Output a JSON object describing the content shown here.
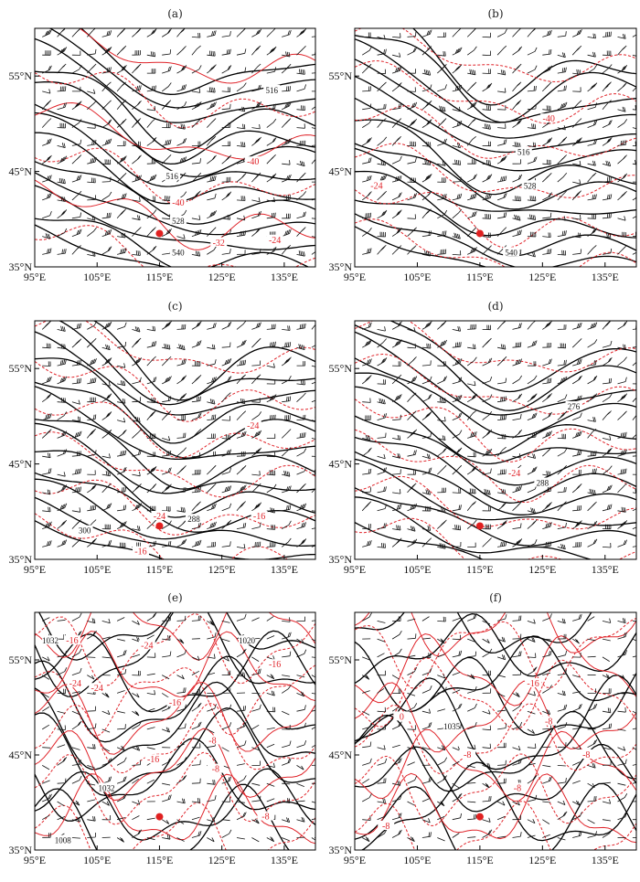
{
  "panels": [
    {
      "id": "a",
      "label": "(a)",
      "black_labels": [
        {
          "text": "516",
          "lon": 133.0,
          "lat": 53.5
        },
        {
          "text": "516",
          "lon": 117.0,
          "lat": 44.5
        },
        {
          "text": "528",
          "lon": 118.0,
          "lat": 39.8
        },
        {
          "text": "540",
          "lon": 118.0,
          "lat": 36.5
        }
      ],
      "red_labels": [
        {
          "text": "-40",
          "lon": 130.0,
          "lat": 46.0
        },
        {
          "text": "-40",
          "lon": 118.0,
          "lat": 41.7
        },
        {
          "text": "-32",
          "lon": 124.5,
          "lat": 37.5
        },
        {
          "text": "-24",
          "lon": 133.5,
          "lat": 37.8
        }
      ]
    },
    {
      "id": "b",
      "label": "(b)",
      "black_labels": [
        {
          "text": "516",
          "lon": 122.0,
          "lat": 47.0
        },
        {
          "text": "528",
          "lon": 123.0,
          "lat": 43.5
        },
        {
          "text": "540",
          "lon": 120.0,
          "lat": 36.5
        }
      ],
      "red_labels": [
        {
          "text": "-40",
          "lon": 126.0,
          "lat": 50.5
        },
        {
          "text": "-24",
          "lon": 98.5,
          "lat": 43.5
        }
      ]
    },
    {
      "id": "c",
      "label": "(c)",
      "black_labels": [
        {
          "text": "300",
          "lon": 103.0,
          "lat": 38.0
        },
        {
          "text": "288",
          "lon": 120.5,
          "lat": 39.2
        }
      ],
      "red_labels": [
        {
          "text": "-24",
          "lon": 130.0,
          "lat": 49.0
        },
        {
          "text": "-24",
          "lon": 115.0,
          "lat": 39.5
        },
        {
          "text": "-16",
          "lon": 131.0,
          "lat": 39.5
        },
        {
          "text": "-16",
          "lon": 112.0,
          "lat": 35.8
        }
      ]
    },
    {
      "id": "d",
      "label": "(d)",
      "black_labels": [
        {
          "text": "276",
          "lon": 130.0,
          "lat": 51.0
        },
        {
          "text": "288",
          "lon": 125.0,
          "lat": 43.0
        }
      ],
      "red_labels": [
        {
          "text": "-24",
          "lon": 120.5,
          "lat": 44.0
        }
      ]
    },
    {
      "id": "e",
      "label": "(e)",
      "black_labels": [
        {
          "text": "1032",
          "lon": 97.5,
          "lat": 57.0
        },
        {
          "text": "1020",
          "lon": 129.0,
          "lat": 57.0
        },
        {
          "text": "1032",
          "lon": 106.5,
          "lat": 41.5
        },
        {
          "text": "1008",
          "lon": 99.5,
          "lat": 36.0
        }
      ],
      "red_labels": [
        {
          "text": "-16",
          "lon": 101.0,
          "lat": 57.0
        },
        {
          "text": "-24",
          "lon": 113.0,
          "lat": 56.5
        },
        {
          "text": "-24",
          "lon": 101.5,
          "lat": 52.5
        },
        {
          "text": "-24",
          "lon": 105.0,
          "lat": 52.0
        },
        {
          "text": "-16",
          "lon": 133.5,
          "lat": 54.5
        },
        {
          "text": "-16",
          "lon": 117.5,
          "lat": 50.5
        },
        {
          "text": "-8",
          "lon": 123.5,
          "lat": 46.5
        },
        {
          "text": "-16",
          "lon": 114.0,
          "lat": 44.5
        },
        {
          "text": "-8",
          "lon": 124.0,
          "lat": 43.5
        },
        {
          "text": "-8",
          "lon": 132.0,
          "lat": 38.5
        }
      ]
    },
    {
      "id": "f",
      "label": "(f)",
      "black_labels": [
        {
          "text": "1035",
          "lon": 110.5,
          "lat": 48.0
        }
      ],
      "red_labels": [
        {
          "text": "-16",
          "lon": 123.5,
          "lat": 52.5
        },
        {
          "text": "0",
          "lon": 102.5,
          "lat": 49.0
        },
        {
          "text": "-8",
          "lon": 126.0,
          "lat": 48.5
        },
        {
          "text": "-8",
          "lon": 113.0,
          "lat": 45.0
        },
        {
          "text": "-8",
          "lon": 132.0,
          "lat": 45.0
        },
        {
          "text": "-8",
          "lon": 121.0,
          "lat": 41.5
        },
        {
          "text": "-8",
          "lon": 100.0,
          "lat": 37.5
        }
      ]
    }
  ],
  "chart_data": {
    "type": "contour_map",
    "panels": [
      "(a)",
      "(b)",
      "(c)",
      "(d)",
      "(e)",
      "(f)"
    ],
    "x_axis": {
      "ticks": [
        95,
        105,
        115,
        125,
        135
      ],
      "tick_labels": [
        "95°E",
        "105°E",
        "115°E",
        "125°E",
        "135°E"
      ],
      "range": [
        95,
        140
      ]
    },
    "y_axis": {
      "ticks": [
        35,
        45,
        55
      ],
      "tick_labels": [
        "35°N",
        "45°N",
        "55°N"
      ],
      "range": [
        35,
        60
      ]
    },
    "station_marker": {
      "lon": 115.0,
      "lat": 38.5,
      "color": "#e02020"
    },
    "line_colors": {
      "geopotential_or_pressure": "#000000",
      "temperature": "#e0242a",
      "wind_barbs": "#111111"
    }
  }
}
